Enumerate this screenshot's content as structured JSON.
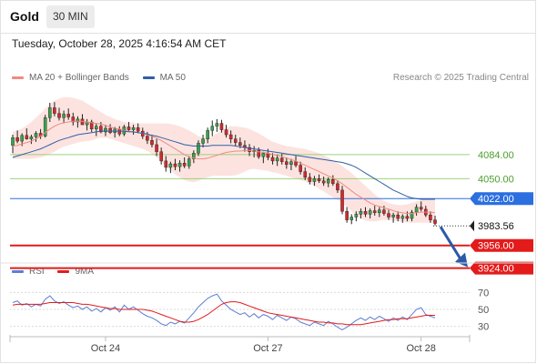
{
  "header": {
    "instrument": "Gold",
    "timeframe": "30 MIN",
    "timestamp": "Tuesday, October 28, 2025 4:16:54 AM CET"
  },
  "legend": {
    "items": [
      {
        "label": "MA 20 + Bollinger Bands",
        "color": "#f08a82"
      },
      {
        "label": "MA 50",
        "color": "#2f5fa7"
      }
    ],
    "credit": "Research © 2025 Trading Central"
  },
  "rsi_legend": {
    "items": [
      {
        "label": "RSI",
        "color": "#5b7fd6"
      },
      {
        "label": "9MA",
        "color": "#e31b1b"
      }
    ]
  },
  "chart_data": [
    {
      "type": "candlestick",
      "title": "Gold",
      "ylim": [
        3930,
        4180
      ],
      "x_ticks": [
        {
          "label": "Oct 24",
          "index": 20
        },
        {
          "label": "Oct 27",
          "index": 55
        },
        {
          "label": "Oct 28",
          "index": 88
        }
      ],
      "candles": [
        [
          4097,
          4112,
          4086,
          4108
        ],
        [
          4108,
          4118,
          4100,
          4103
        ],
        [
          4103,
          4114,
          4096,
          4111
        ],
        [
          4111,
          4121,
          4105,
          4106
        ],
        [
          4106,
          4112,
          4099,
          4109
        ],
        [
          4109,
          4117,
          4102,
          4114
        ],
        [
          4114,
          4120,
          4106,
          4110
        ],
        [
          4110,
          4140,
          4108,
          4136
        ],
        [
          4136,
          4157,
          4130,
          4150
        ],
        [
          4150,
          4158,
          4138,
          4142
        ],
        [
          4142,
          4150,
          4132,
          4136
        ],
        [
          4136,
          4146,
          4128,
          4141
        ],
        [
          4141,
          4149,
          4133,
          4137
        ],
        [
          4137,
          4143,
          4125,
          4130
        ],
        [
          4130,
          4138,
          4122,
          4134
        ],
        [
          4134,
          4141,
          4128,
          4126
        ],
        [
          4126,
          4134,
          4118,
          4130
        ],
        [
          4130,
          4133,
          4116,
          4120
        ],
        [
          4120,
          4128,
          4110,
          4124
        ],
        [
          4124,
          4130,
          4114,
          4116
        ],
        [
          4116,
          4126,
          4110,
          4121
        ],
        [
          4121,
          4127,
          4113,
          4115
        ],
        [
          4115,
          4123,
          4108,
          4120
        ],
        [
          4120,
          4124,
          4110,
          4113
        ],
        [
          4113,
          4126,
          4110,
          4123
        ],
        [
          4123,
          4130,
          4116,
          4119
        ],
        [
          4119,
          4126,
          4112,
          4122
        ],
        [
          4122,
          4128,
          4114,
          4117
        ],
        [
          4117,
          4122,
          4106,
          4110
        ],
        [
          4110,
          4116,
          4099,
          4104
        ],
        [
          4104,
          4112,
          4094,
          4098
        ],
        [
          4098,
          4106,
          4082,
          4088
        ],
        [
          4088,
          4094,
          4070,
          4075
        ],
        [
          4075,
          4082,
          4060,
          4066
        ],
        [
          4066,
          4074,
          4058,
          4071
        ],
        [
          4071,
          4078,
          4062,
          4067
        ],
        [
          4067,
          4076,
          4060,
          4072
        ],
        [
          4072,
          4080,
          4065,
          4068
        ],
        [
          4068,
          4082,
          4064,
          4078
        ],
        [
          4078,
          4090,
          4072,
          4086
        ],
        [
          4086,
          4104,
          4082,
          4100
        ],
        [
          4100,
          4112,
          4094,
          4106
        ],
        [
          4106,
          4122,
          4100,
          4118
        ],
        [
          4118,
          4132,
          4110,
          4124
        ],
        [
          4124,
          4134,
          4116,
          4128
        ],
        [
          4128,
          4133,
          4115,
          4119
        ],
        [
          4119,
          4126,
          4108,
          4112
        ],
        [
          4112,
          4118,
          4100,
          4106
        ],
        [
          4106,
          4112,
          4096,
          4101
        ],
        [
          4101,
          4108,
          4093,
          4097
        ],
        [
          4097,
          4104,
          4088,
          4094
        ],
        [
          4094,
          4099,
          4082,
          4088
        ],
        [
          4088,
          4096,
          4080,
          4090
        ],
        [
          4090,
          4094,
          4078,
          4081
        ],
        [
          4081,
          4088,
          4072,
          4086
        ],
        [
          4086,
          4092,
          4076,
          4080
        ],
        [
          4080,
          4086,
          4070,
          4075
        ],
        [
          4075,
          4084,
          4068,
          4079
        ],
        [
          4079,
          4085,
          4070,
          4074
        ],
        [
          4074,
          4080,
          4064,
          4070
        ],
        [
          4070,
          4078,
          4062,
          4074
        ],
        [
          4074,
          4082,
          4066,
          4069
        ],
        [
          4069,
          4074,
          4056,
          4060
        ],
        [
          4060,
          4066,
          4048,
          4052
        ],
        [
          4052,
          4058,
          4042,
          4046
        ],
        [
          4046,
          4054,
          4040,
          4050
        ],
        [
          4050,
          4056,
          4044,
          4047
        ],
        [
          4047,
          4053,
          4040,
          4044
        ],
        [
          4044,
          4052,
          4038,
          4049
        ],
        [
          4049,
          4055,
          4040,
          4043
        ],
        [
          4043,
          4048,
          4030,
          4034
        ],
        [
          4034,
          4040,
          4000,
          4004
        ],
        [
          4004,
          4010,
          3988,
          3992
        ],
        [
          3992,
          4000,
          3986,
          3996
        ],
        [
          3996,
          4004,
          3990,
          4000
        ],
        [
          4000,
          4008,
          3994,
          4004
        ],
        [
          4004,
          4010,
          3996,
          4000
        ],
        [
          4000,
          4008,
          3994,
          4005
        ],
        [
          4005,
          4012,
          3998,
          4002
        ],
        [
          4002,
          4010,
          3996,
          4006
        ],
        [
          4006,
          4012,
          3998,
          4001
        ],
        [
          4001,
          4006,
          3992,
          3996
        ],
        [
          3996,
          4002,
          3988,
          3999
        ],
        [
          3999,
          4004,
          3990,
          3994
        ],
        [
          3994,
          4000,
          3988,
          3997
        ],
        [
          3997,
          4004,
          3990,
          3994
        ],
        [
          3994,
          4006,
          3990,
          4003
        ],
        [
          4003,
          4014,
          3998,
          4010
        ],
        [
          4010,
          4018,
          4004,
          4007
        ],
        [
          4007,
          4012,
          3996,
          3999
        ],
        [
          3999,
          4004,
          3988,
          3992
        ],
        [
          3992,
          3998,
          3984,
          3987
        ]
      ],
      "ma20": [
        4096,
        4097,
        4099,
        4101,
        4103,
        4106,
        4110,
        4115,
        4120,
        4124,
        4127,
        4129,
        4130,
        4131,
        4131,
        4131,
        4130,
        4129,
        4128,
        4127,
        4125,
        4123,
        4121,
        4120,
        4118,
        4117,
        4116,
        4115,
        4114,
        4112,
        4110,
        4107,
        4104,
        4100,
        4096,
        4092,
        4088,
        4084,
        4081,
        4079,
        4078,
        4078,
        4079,
        4081,
        4083,
        4085,
        4087,
        4088,
        4089,
        4089,
        4090,
        4090,
        4089,
        4088,
        4087,
        4086,
        4084,
        4083,
        4081,
        4079,
        4077,
        4075,
        4072,
        4069,
        4066,
        4063,
        4060,
        4057,
        4054,
        4051,
        4047,
        4043,
        4038,
        4033,
        4028,
        4024,
        4020,
        4016,
        4013,
        4011,
        4009,
        4007,
        4005,
        4003,
        4002,
        4001,
        4001,
        4002,
        4003,
        4003,
        4003,
        4002
      ],
      "bb_upper": [
        4116,
        4118,
        4121,
        4125,
        4130,
        4136,
        4142,
        4149,
        4155,
        4160,
        4163,
        4165,
        4165,
        4164,
        4162,
        4160,
        4156,
        4152,
        4148,
        4144,
        4140,
        4137,
        4134,
        4132,
        4130,
        4129,
        4129,
        4128,
        4128,
        4128,
        4128,
        4128,
        4128,
        4128,
        4127,
        4126,
        4124,
        4121,
        4118,
        4114,
        4110,
        4108,
        4108,
        4110,
        4114,
        4118,
        4122,
        4124,
        4124,
        4123,
        4122,
        4120,
        4117,
        4114,
        4110,
        4106,
        4102,
        4100,
        4098,
        4096,
        4095,
        4094,
        4093,
        4092,
        4090,
        4088,
        4086,
        4083,
        4080,
        4076,
        4072,
        4068,
        4063,
        4058,
        4052,
        4046,
        4040,
        4034,
        4028,
        4023,
        4019,
        4016,
        4014,
        4013,
        4013,
        4014,
        4016,
        4018,
        4020,
        4021,
        4021,
        4020
      ],
      "bb_lower": [
        4078,
        4078,
        4078,
        4078,
        4078,
        4079,
        4080,
        4082,
        4085,
        4088,
        4092,
        4095,
        4097,
        4099,
        4101,
        4102,
        4103,
        4104,
        4106,
        4108,
        4108,
        4106,
        4104,
        4102,
        4100,
        4098,
        4096,
        4094,
        4092,
        4089,
        4085,
        4080,
        4074,
        4068,
        4062,
        4056,
        4052,
        4048,
        4046,
        4045,
        4047,
        4050,
        4052,
        4054,
        4054,
        4054,
        4054,
        4054,
        4055,
        4057,
        4060,
        4063,
        4064,
        4063,
        4062,
        4061,
        4059,
        4058,
        4056,
        4054,
        4052,
        4050,
        4048,
        4046,
        4043,
        4040,
        4036,
        4032,
        4028,
        4024,
        4020,
        4016,
        4010,
        4004,
        3998,
        3994,
        3991,
        3990,
        3990,
        3991,
        3992,
        3992,
        3991,
        3990,
        3989,
        3988,
        3988,
        3988,
        3988,
        3988,
        3988,
        3988
      ],
      "ma50": [
        4080,
        4082,
        4084,
        4086,
        4088,
        4090,
        4092,
        4095,
        4098,
        4101,
        4104,
        4106,
        4108,
        4110,
        4112,
        4113,
        4114,
        4115,
        4116,
        4117,
        4117,
        4117,
        4117,
        4117,
        4117,
        4116,
        4116,
        4115,
        4114,
        4113,
        4111,
        4110,
        4108,
        4106,
        4104,
        4102,
        4100,
        4098,
        4097,
        4096,
        4096,
        4096,
        4096,
        4097,
        4097,
        4097,
        4097,
        4097,
        4096,
        4095,
        4094,
        4093,
        4092,
        4091,
        4090,
        4089,
        4088,
        4087,
        4086,
        4085,
        4084,
        4083,
        4082,
        4081,
        4080,
        4079,
        4078,
        4077,
        4076,
        4075,
        4074,
        4073,
        4071,
        4069,
        4066,
        4062,
        4058,
        4054,
        4050,
        4046,
        4042,
        4038,
        4034,
        4031,
        4028,
        4025,
        4023,
        4022,
        4021,
        4021,
        4021,
        4021
      ],
      "horizontal_levels": [
        {
          "value": 4084.0,
          "label": "4084.00",
          "style": "resistance"
        },
        {
          "value": 4050.0,
          "label": "4050.00",
          "style": "resistance"
        },
        {
          "value": 4022.0,
          "label": "4022.00",
          "style": "pivot"
        },
        {
          "value": 3983.56,
          "label": "3983.56",
          "style": "last_price"
        },
        {
          "value": 3956.0,
          "label": "3956.00",
          "style": "support"
        },
        {
          "value": 3924.0,
          "label": "3924.00",
          "style": "support"
        }
      ],
      "arrow": {
        "direction": "down",
        "from_value": 3983.56,
        "to_value": 3924.0
      }
    },
    {
      "type": "line",
      "title": "RSI",
      "ylim": [
        20,
        80
      ],
      "y_ticks": [
        70,
        50,
        30
      ],
      "series": [
        {
          "name": "RSI",
          "color": "#5b7fd6",
          "values": [
            58,
            60,
            55,
            57,
            53,
            56,
            54,
            62,
            66,
            60,
            57,
            59,
            55,
            52,
            54,
            50,
            53,
            48,
            51,
            47,
            52,
            49,
            53,
            47,
            55,
            50,
            53,
            49,
            45,
            42,
            40,
            37,
            33,
            31,
            35,
            33,
            36,
            34,
            40,
            46,
            53,
            58,
            63,
            66,
            68,
            60,
            55,
            50,
            47,
            44,
            46,
            41,
            45,
            40,
            44,
            42,
            38,
            43,
            40,
            37,
            41,
            39,
            35,
            33,
            31,
            35,
            33,
            31,
            36,
            33,
            29,
            26,
            29,
            33,
            37,
            40,
            37,
            41,
            38,
            42,
            39,
            36,
            40,
            37,
            41,
            38,
            44,
            50,
            52,
            44,
            42,
            40
          ]
        },
        {
          "name": "9MA",
          "color": "#e31b1b",
          "values": [
            55,
            56,
            56,
            56,
            56,
            56,
            56,
            57,
            58,
            58,
            58,
            58,
            58,
            58,
            57,
            56,
            56,
            55,
            54,
            53,
            52,
            51,
            51,
            50,
            50,
            50,
            50,
            50,
            50,
            49,
            48,
            46,
            44,
            42,
            40,
            38,
            36,
            35,
            35,
            36,
            38,
            41,
            44,
            48,
            52,
            56,
            58,
            59,
            59,
            58,
            56,
            54,
            52,
            50,
            48,
            46,
            45,
            44,
            43,
            42,
            41,
            40,
            39,
            38,
            37,
            36,
            35,
            35,
            34,
            34,
            33,
            33,
            32,
            32,
            32,
            32,
            33,
            34,
            35,
            36,
            37,
            38,
            38,
            39,
            39,
            39,
            40,
            41,
            42,
            43,
            43,
            43
          ]
        }
      ]
    }
  ]
}
